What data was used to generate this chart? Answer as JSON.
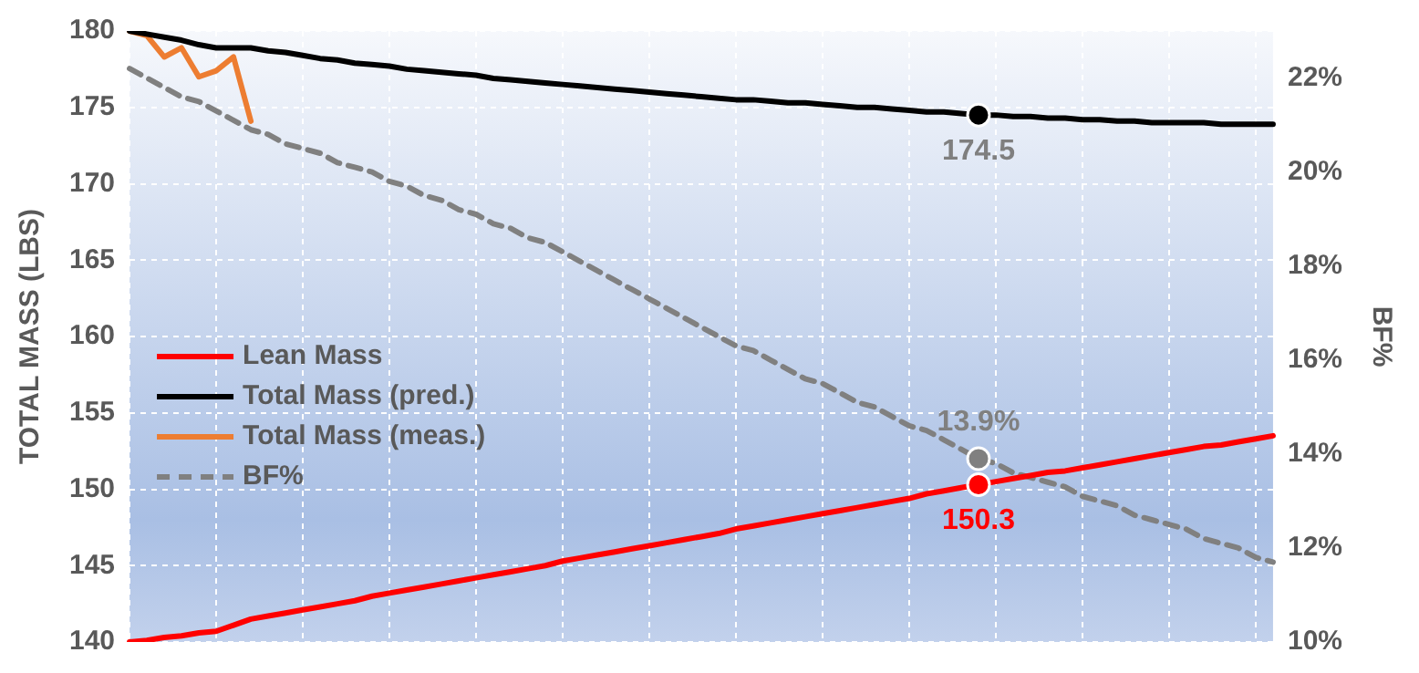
{
  "chart_data": {
    "type": "line",
    "ylabel": "TOTAL MASS (LBS)",
    "y2label": "BF%",
    "categories": [
      null,
      null,
      null,
      null,
      null,
      null,
      null,
      null,
      null,
      null,
      null,
      null,
      null,
      null,
      null,
      null,
      null,
      null,
      null,
      null,
      null,
      null,
      null,
      null,
      null,
      null,
      null,
      null,
      null,
      null,
      null,
      null,
      null,
      null,
      null,
      null,
      null,
      null,
      null,
      null,
      null,
      null,
      null,
      null,
      null,
      null,
      null,
      null,
      null,
      null,
      null,
      null,
      null,
      null,
      null,
      null,
      null,
      null,
      null,
      null,
      null,
      null,
      null,
      null,
      null,
      null,
      null
    ],
    "ylim": [
      140,
      180
    ],
    "yticks": [
      140,
      145,
      150,
      155,
      160,
      165,
      170,
      175,
      180
    ],
    "y2lim": [
      10,
      23
    ],
    "y2ticks": [
      {
        "value": 10,
        "label": "10%"
      },
      {
        "value": 12,
        "label": "12%"
      },
      {
        "value": 14,
        "label": "14%"
      },
      {
        "value": 16,
        "label": "16%"
      },
      {
        "value": 18,
        "label": "18%"
      },
      {
        "value": 20,
        "label": "20%"
      },
      {
        "value": 22,
        "label": "22%"
      }
    ],
    "grid": true,
    "legend": "left",
    "line_style": "solid",
    "series": [
      {
        "name": "Lean Mass",
        "color": "#ff0000",
        "values": [
          140.0,
          140.1,
          140.3,
          140.4,
          140.6,
          140.7,
          141.1,
          141.5,
          141.7,
          141.9,
          142.1,
          142.3,
          142.5,
          142.7,
          143.0,
          143.2,
          143.4,
          143.6,
          143.8,
          144.0,
          144.2,
          144.4,
          144.6,
          144.8,
          145.0,
          145.3,
          145.5,
          145.7,
          145.9,
          146.1,
          146.3,
          146.5,
          146.7,
          146.9,
          147.1,
          147.4,
          147.6,
          147.8,
          148.0,
          148.2,
          148.4,
          148.6,
          148.8,
          149.0,
          149.2,
          149.4,
          149.7,
          149.9,
          150.1,
          150.3,
          150.5,
          150.7,
          150.9,
          151.1,
          151.2,
          151.4,
          151.6,
          151.8,
          152.0,
          152.2,
          152.4,
          152.6,
          152.8,
          152.9,
          153.1,
          153.3,
          153.5
        ],
        "value_labels": [
          null,
          null,
          null,
          null,
          null,
          null,
          null,
          null,
          null,
          null,
          null,
          null,
          null,
          null,
          null,
          null,
          null,
          null,
          null,
          null,
          null,
          null,
          null,
          null,
          null,
          null,
          null,
          null,
          null,
          null,
          null,
          null,
          null,
          null,
          null,
          null,
          null,
          null,
          null,
          null,
          null,
          null,
          null,
          null,
          null,
          null,
          null,
          null,
          null,
          "150.3",
          null,
          null,
          null,
          null,
          null,
          null,
          null,
          null,
          null,
          null,
          null,
          null,
          null,
          null,
          null,
          null,
          null
        ]
      },
      {
        "name": "Total Mass (pred.)",
        "color": "#000000",
        "values": [
          180.0,
          179.8,
          179.6,
          179.4,
          179.1,
          178.9,
          178.9,
          178.9,
          178.7,
          178.6,
          178.4,
          178.2,
          178.1,
          177.9,
          177.8,
          177.7,
          177.5,
          177.4,
          177.3,
          177.2,
          177.1,
          176.9,
          176.8,
          176.7,
          176.6,
          176.5,
          176.4,
          176.3,
          176.2,
          176.1,
          176.0,
          175.9,
          175.8,
          175.7,
          175.6,
          175.5,
          175.5,
          175.4,
          175.3,
          175.3,
          175.2,
          175.1,
          175.0,
          175.0,
          174.9,
          174.8,
          174.7,
          174.7,
          174.6,
          174.5,
          174.5,
          174.4,
          174.4,
          174.3,
          174.3,
          174.2,
          174.2,
          174.1,
          174.1,
          174.0,
          174.0,
          174.0,
          174.0,
          173.9,
          173.9,
          173.9,
          173.9
        ],
        "value_labels": [
          null,
          null,
          null,
          null,
          null,
          null,
          null,
          null,
          null,
          null,
          null,
          null,
          null,
          null,
          null,
          null,
          null,
          null,
          null,
          null,
          null,
          null,
          null,
          null,
          null,
          null,
          null,
          null,
          null,
          null,
          null,
          null,
          null,
          null,
          null,
          null,
          null,
          null,
          null,
          null,
          null,
          null,
          null,
          null,
          null,
          null,
          null,
          null,
          null,
          "174.5",
          null,
          null,
          null,
          null,
          null,
          null,
          null,
          null,
          null,
          null,
          null,
          null,
          null,
          null,
          null,
          null,
          null
        ]
      },
      {
        "name": "Total Mass (meas.)",
        "color": "#ed7d31",
        "values": [
          180.0,
          179.7,
          178.3,
          178.9,
          177.0,
          177.4,
          178.3,
          174.1,
          null,
          null,
          null,
          null,
          null,
          null,
          null,
          null,
          null,
          null,
          null,
          null,
          null,
          null,
          null,
          null,
          null,
          null,
          null,
          null,
          null,
          null,
          null,
          null,
          null,
          null,
          null,
          null,
          null,
          null,
          null,
          null,
          null,
          null,
          null,
          null,
          null,
          null,
          null,
          null,
          null,
          null,
          null,
          null,
          null,
          null,
          null,
          null,
          null,
          null,
          null,
          null,
          null,
          null,
          null,
          null,
          null,
          null,
          null
        ]
      },
      {
        "name": "BF%",
        "color": "#808080",
        "axis": "y2",
        "line_style": "dashed",
        "values": [
          22.2,
          22.0,
          21.8,
          21.6,
          21.5,
          21.3,
          21.1,
          20.9,
          20.8,
          20.6,
          20.5,
          20.4,
          20.2,
          20.1,
          20.0,
          19.8,
          19.7,
          19.5,
          19.4,
          19.2,
          19.1,
          18.9,
          18.8,
          18.6,
          18.5,
          18.3,
          18.1,
          17.9,
          17.7,
          17.5,
          17.3,
          17.1,
          16.9,
          16.7,
          16.5,
          16.3,
          16.2,
          16.0,
          15.8,
          15.6,
          15.5,
          15.3,
          15.1,
          15.0,
          14.8,
          14.6,
          14.5,
          14.3,
          14.1,
          13.9,
          13.8,
          13.6,
          13.5,
          13.4,
          13.3,
          13.1,
          13.0,
          12.9,
          12.7,
          12.6,
          12.5,
          12.4,
          12.2,
          12.1,
          12.0,
          11.8,
          11.7
        ],
        "value_labels": [
          null,
          null,
          null,
          null,
          null,
          null,
          null,
          null,
          null,
          null,
          null,
          null,
          null,
          null,
          null,
          null,
          null,
          null,
          null,
          null,
          null,
          null,
          null,
          null,
          null,
          null,
          null,
          null,
          null,
          null,
          null,
          null,
          null,
          null,
          null,
          null,
          null,
          null,
          null,
          null,
          null,
          null,
          null,
          null,
          null,
          null,
          null,
          null,
          null,
          "13.9%",
          null,
          null,
          null,
          null,
          null,
          null,
          null,
          null,
          null,
          null,
          null,
          null,
          null,
          null,
          null,
          null,
          null
        ]
      }
    ]
  }
}
